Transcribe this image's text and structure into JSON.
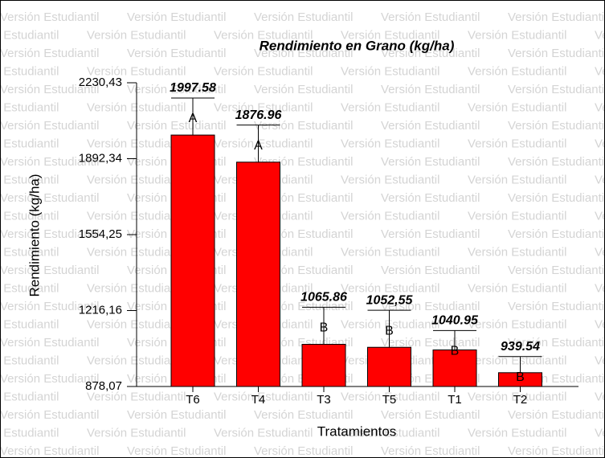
{
  "chart_data": {
    "type": "bar",
    "title": "Rendimiento en Grano (kg/ha)",
    "watermark": "Versión Estudiantil",
    "xlabel": "Tratamientos",
    "ylabel": "Rendimiento (kg/ha)",
    "categories": [
      "T6",
      "T4",
      "T3",
      "T5",
      "T1",
      "T2"
    ],
    "series": [
      {
        "color": "#ff0000",
        "values": [
          1997.58,
          1876.96,
          1065.86,
          1052.55,
          1040.95,
          939.54
        ],
        "value_labels": [
          "1997.58",
          "1876.96",
          "1065.86",
          "1052,55",
          "1040.95",
          "939.54"
        ],
        "errors": [
          165,
          165,
          165,
          165,
          86,
          72
        ],
        "letters": [
          "A",
          "A",
          "B",
          "B",
          "B",
          "B"
        ]
      }
    ],
    "ylim": [
      878.07,
      2230.43
    ],
    "yticks": [
      {
        "value": 878.07,
        "label": "878,07"
      },
      {
        "value": 1216.16,
        "label": "1216,16"
      },
      {
        "value": 1554.25,
        "label": "1554,25"
      },
      {
        "value": 1892.34,
        "label": "1892,34"
      },
      {
        "value": 2230.43,
        "label": "2230,43"
      }
    ]
  }
}
